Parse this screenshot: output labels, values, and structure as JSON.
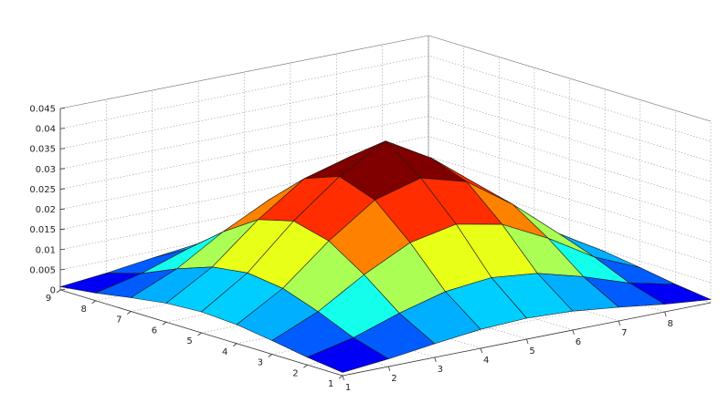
{
  "chart_data": {
    "type": "surface3d",
    "title": "",
    "xlabel": "",
    "ylabel": "",
    "zlabel": "",
    "x": [
      1,
      2,
      3,
      4,
      5,
      6,
      7,
      8,
      9
    ],
    "y": [
      1,
      2,
      3,
      4,
      5,
      6,
      7,
      8,
      9
    ],
    "x_tick_labels": [
      "1",
      "2",
      "3",
      "4",
      "5",
      "6",
      "7",
      "8"
    ],
    "y_tick_labels": [
      "1",
      "2",
      "3",
      "4",
      "5",
      "6",
      "7",
      "8",
      "9"
    ],
    "z_tick_labels": [
      "0",
      "0.005",
      "0.01",
      "0.015",
      "0.02",
      "0.025",
      "0.03",
      "0.035",
      "0.04",
      "0.045"
    ],
    "xlim": [
      1,
      9
    ],
    "ylim": [
      1,
      9
    ],
    "zlim": [
      0,
      0.045
    ],
    "grid": true,
    "colormap": "jet",
    "z": [
      [
        0.0008,
        0.0019,
        0.0034,
        0.0047,
        0.0052,
        0.0047,
        0.0034,
        0.0019,
        0.0008
      ],
      [
        0.0019,
        0.0045,
        0.0083,
        0.0114,
        0.0126,
        0.0114,
        0.0083,
        0.0045,
        0.0019
      ],
      [
        0.0034,
        0.0083,
        0.0152,
        0.0209,
        0.0232,
        0.0209,
        0.0152,
        0.0083,
        0.0034
      ],
      [
        0.0047,
        0.0114,
        0.0209,
        0.0288,
        0.032,
        0.0288,
        0.0209,
        0.0114,
        0.0047
      ],
      [
        0.0052,
        0.0126,
        0.0232,
        0.032,
        0.0385,
        0.032,
        0.0232,
        0.0126,
        0.0052
      ],
      [
        0.0047,
        0.0114,
        0.0209,
        0.0288,
        0.032,
        0.0288,
        0.0209,
        0.0114,
        0.0047
      ],
      [
        0.0034,
        0.0083,
        0.0152,
        0.0209,
        0.0232,
        0.0209,
        0.0152,
        0.0083,
        0.0034
      ],
      [
        0.0019,
        0.0045,
        0.0083,
        0.0114,
        0.0126,
        0.0114,
        0.0083,
        0.0045,
        0.0019
      ],
      [
        0.0008,
        0.0019,
        0.0034,
        0.0047,
        0.0052,
        0.0047,
        0.0034,
        0.0019,
        0.0008
      ]
    ]
  }
}
